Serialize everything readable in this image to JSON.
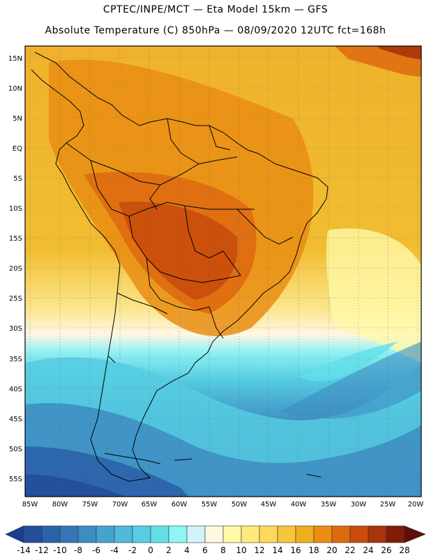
{
  "header": {
    "title_line1": "CPTEC/INPE/MCT —  Eta Model 15km — GFS",
    "title_line2": "Absolute Temperature (C) 850hPa — 08/09/2020 12UTC fct=168h"
  },
  "map": {
    "lat_labels": [
      "15N",
      "10N",
      "5N",
      "EQ",
      "5S",
      "10S",
      "15S",
      "20S",
      "25S",
      "30S",
      "35S",
      "40S",
      "45S",
      "50S",
      "55S"
    ],
    "lon_labels": [
      "85W",
      "80W",
      "75W",
      "70W",
      "65W",
      "60W",
      "55W",
      "50W",
      "45W",
      "40W",
      "35W",
      "30W",
      "25W",
      "20W"
    ]
  },
  "colorbar": {
    "labels": [
      "-14",
      "-12",
      "-10",
      "-8",
      "-6",
      "-4",
      "-2",
      "0",
      "2",
      "4",
      "6",
      "8",
      "10",
      "12",
      "14",
      "16",
      "18",
      "20",
      "22",
      "24",
      "26",
      "28"
    ],
    "colors": [
      "#1a3d8f",
      "#234f9c",
      "#2b62aa",
      "#3576b6",
      "#3d8cc2",
      "#46a3cf",
      "#4fbad9",
      "#56cde2",
      "#62e0ea",
      "#8ff5f5",
      "#cff4f7",
      "#fff6e3",
      "#fff9a8",
      "#ffe97a",
      "#fdd85a",
      "#f6c53c",
      "#efae1e",
      "#e98d13",
      "#de6a0f",
      "#c94c0c",
      "#a8340a",
      "#801c07",
      "#5e0f08"
    ]
  }
}
